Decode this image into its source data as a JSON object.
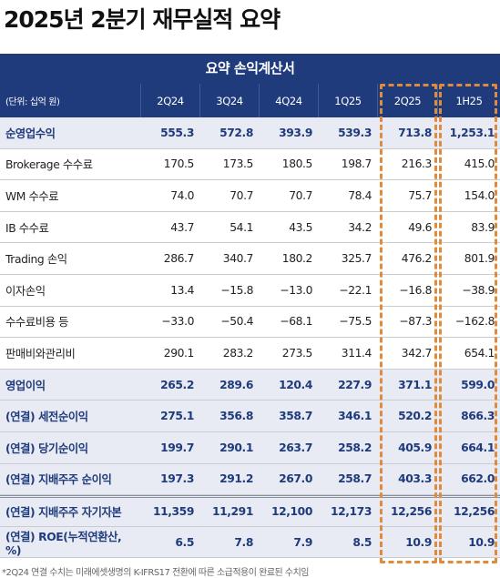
{
  "title": "2025년 2분기 재무실적 요약",
  "banner": "요약 손익계산서",
  "header": {
    "unit": "(단위: 십억 원)",
    "columns": [
      "2Q24",
      "3Q24",
      "4Q24",
      "1Q25",
      "2Q25",
      "1H25"
    ]
  },
  "rows": [
    {
      "label": "순영업수익",
      "values": [
        "555.3",
        "572.8",
        "393.9",
        "539.3",
        "713.8",
        "1,253.1"
      ],
      "bold": true
    },
    {
      "label": "Brokerage 수수료",
      "values": [
        "170.5",
        "173.5",
        "180.5",
        "198.7",
        "216.3",
        "415.0"
      ]
    },
    {
      "label": "WM 수수료",
      "values": [
        "74.0",
        "70.7",
        "70.7",
        "78.4",
        "75.7",
        "154.0"
      ]
    },
    {
      "label": "IB 수수료",
      "values": [
        "43.7",
        "54.1",
        "43.5",
        "34.2",
        "49.6",
        "83.9"
      ]
    },
    {
      "label": "Trading 손익",
      "values": [
        "286.7",
        "340.7",
        "180.2",
        "325.7",
        "476.2",
        "801.9"
      ]
    },
    {
      "label": "이자손익",
      "values": [
        "13.4",
        "−15.8",
        "−13.0",
        "−22.1",
        "−16.8",
        "−38.9"
      ]
    },
    {
      "label": "수수료비용 등",
      "values": [
        "−33.0",
        "−50.4",
        "−68.1",
        "−75.5",
        "−87.3",
        "−162.8"
      ]
    },
    {
      "label": "판매비와관리비",
      "values": [
        "290.1",
        "283.2",
        "273.5",
        "311.4",
        "342.7",
        "654.1"
      ]
    },
    {
      "label": "영업이익",
      "values": [
        "265.2",
        "289.6",
        "120.4",
        "227.9",
        "371.1",
        "599.0"
      ],
      "bold": true
    },
    {
      "label": "(연결) 세전순이익",
      "values": [
        "275.1",
        "356.8",
        "358.7",
        "346.1",
        "520.2",
        "866.3"
      ],
      "bold": true
    },
    {
      "label": "(연결) 당기순이익",
      "values": [
        "199.7",
        "290.1",
        "263.7",
        "258.2",
        "405.9",
        "664.1"
      ],
      "bold": true
    },
    {
      "label": "(연결) 지배주주 순이익",
      "values": [
        "197.3",
        "291.2",
        "267.0",
        "258.7",
        "403.3",
        "662.0"
      ],
      "bold": true
    },
    {
      "label": "(연결) 지배주주 자기자본",
      "values": [
        "11,359",
        "11,291",
        "12,100",
        "12,173",
        "12,256",
        "12,256"
      ],
      "bold": true
    },
    {
      "label": "(연결) ROE(누적연환산, %)",
      "values": [
        "6.5",
        "7.8",
        "7.9",
        "8.5",
        "10.9",
        "10.9"
      ],
      "bold": true
    }
  ],
  "footnote": "*2Q24 연결 수치는 미래에셋생명의 K-IFRS17 전환에 따른 소급적용이 완료된 수치임",
  "colors": {
    "navy": "#1f3b7c",
    "band": "#e8ebf3",
    "highlight": "#e08a3c"
  }
}
